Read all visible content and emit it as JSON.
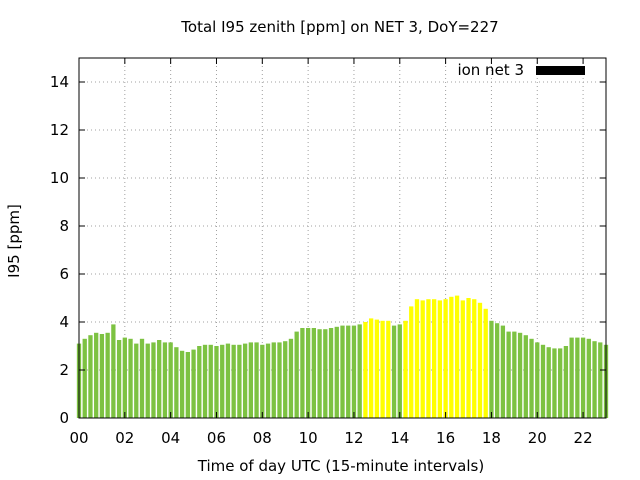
{
  "chart_data": {
    "type": "bar",
    "title": "Total I95 zenith [ppm] on NET 3, DoY=227",
    "xlabel": "Time of day UTC (15-minute intervals)",
    "ylabel": "I95 [ppm]",
    "xlim": [
      0,
      23
    ],
    "ylim": [
      0,
      15
    ],
    "x_ticks": [
      0,
      2,
      4,
      6,
      8,
      10,
      12,
      14,
      16,
      18,
      20,
      22
    ],
    "x_tick_labels": [
      "00",
      "02",
      "04",
      "06",
      "08",
      "10",
      "12",
      "14",
      "16",
      "18",
      "20",
      "22"
    ],
    "y_ticks": [
      0,
      2,
      4,
      6,
      8,
      10,
      12,
      14
    ],
    "y_tick_labels": [
      "0",
      "2",
      "4",
      "6",
      "8",
      "10",
      "12",
      "14"
    ],
    "grid": true,
    "legend": {
      "position": "top-right",
      "entries": [
        {
          "label": "ion net 3",
          "color": "#000000"
        }
      ]
    },
    "interval_hours": 0.25,
    "colors": {
      "normal": "#7dc242",
      "elevated": "#ffff00"
    },
    "series": [
      {
        "name": "ion net 3",
        "values": [
          3.1,
          3.3,
          3.45,
          3.55,
          3.5,
          3.55,
          3.9,
          3.25,
          3.35,
          3.3,
          3.1,
          3.3,
          3.1,
          3.15,
          3.25,
          3.15,
          3.15,
          2.95,
          2.8,
          2.75,
          2.85,
          3.0,
          3.05,
          3.05,
          3.0,
          3.05,
          3.1,
          3.05,
          3.05,
          3.1,
          3.15,
          3.15,
          3.05,
          3.1,
          3.15,
          3.15,
          3.2,
          3.3,
          3.6,
          3.75,
          3.75,
          3.75,
          3.7,
          3.7,
          3.75,
          3.8,
          3.85,
          3.85,
          3.85,
          3.9,
          4.0,
          4.15,
          4.1,
          4.05,
          4.05,
          3.85,
          3.9,
          4.05,
          4.65,
          4.95,
          4.9,
          4.95,
          4.95,
          4.9,
          4.95,
          5.05,
          5.1,
          4.9,
          5.0,
          4.95,
          4.8,
          4.55,
          4.05,
          3.95,
          3.85,
          3.6,
          3.6,
          3.55,
          3.45,
          3.3,
          3.15,
          3.05,
          2.95,
          2.9,
          2.9,
          3.0,
          3.35,
          3.35,
          3.35,
          3.3,
          3.2,
          3.15,
          3.05
        ],
        "elevated": [
          0,
          0,
          0,
          0,
          0,
          0,
          0,
          0,
          0,
          0,
          0,
          0,
          0,
          0,
          0,
          0,
          0,
          0,
          0,
          0,
          0,
          0,
          0,
          0,
          0,
          0,
          0,
          0,
          0,
          0,
          0,
          0,
          0,
          0,
          0,
          0,
          0,
          0,
          0,
          0,
          0,
          0,
          0,
          0,
          0,
          0,
          0,
          0,
          0,
          0,
          1,
          1,
          1,
          1,
          1,
          0,
          0,
          1,
          1,
          1,
          1,
          1,
          1,
          1,
          1,
          1,
          1,
          1,
          1,
          1,
          1,
          1,
          0,
          0,
          0,
          0,
          0,
          0,
          0,
          0,
          0,
          0,
          0,
          0,
          0,
          0,
          0,
          0,
          0,
          0,
          0,
          0,
          0
        ]
      }
    ]
  }
}
